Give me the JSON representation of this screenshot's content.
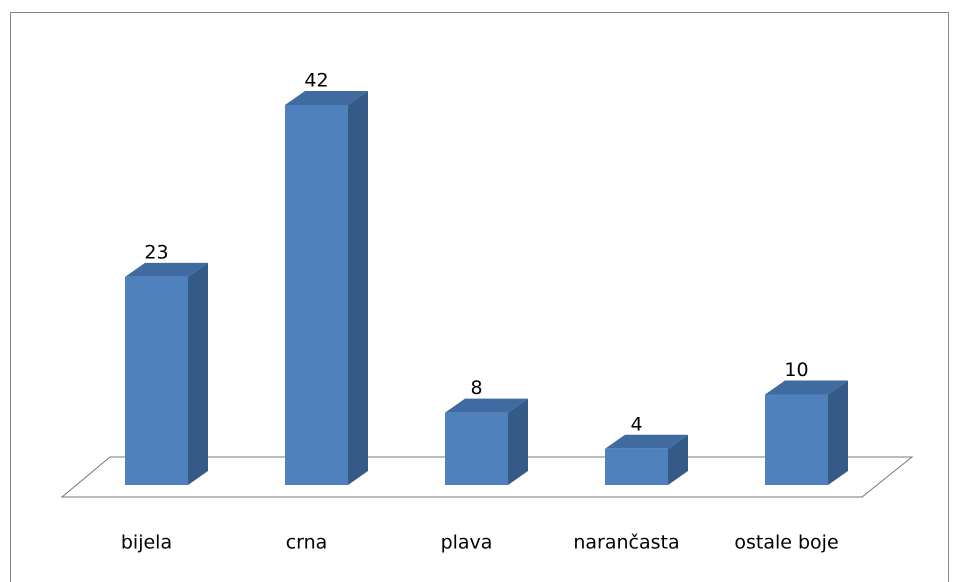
{
  "chart_data": {
    "type": "bar3d",
    "categories": [
      "bijela",
      "crna",
      "plava",
      "narančasta",
      "ostale boje"
    ],
    "values": [
      23,
      42,
      8,
      4,
      10
    ],
    "color": "#4f81bd"
  }
}
